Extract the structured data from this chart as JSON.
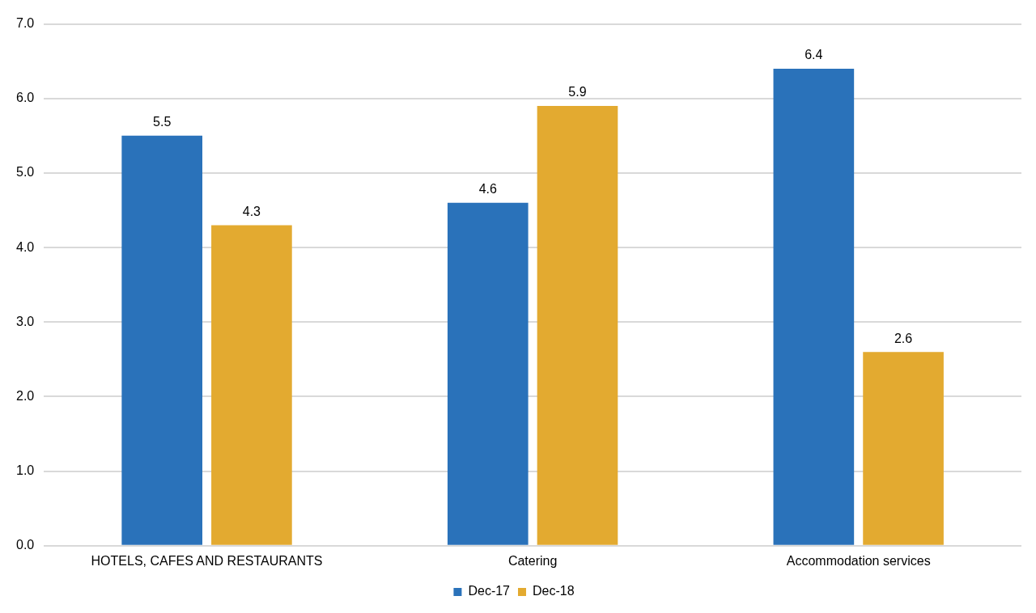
{
  "chart_data": {
    "type": "bar",
    "categories": [
      "HOTELS, CAFES AND RESTAURANTS",
      "Catering",
      "Accommodation services"
    ],
    "series": [
      {
        "name": "Dec-17",
        "color": "#2a72ba",
        "values": [
          5.5,
          4.6,
          6.4
        ]
      },
      {
        "name": "Dec-18",
        "color": "#e3aa30",
        "values": [
          4.3,
          5.9,
          2.6
        ]
      }
    ],
    "ylim": [
      0,
      7
    ],
    "yticks": [
      {
        "value": 0,
        "label": "0.0"
      },
      {
        "value": 1,
        "label": "1.0"
      },
      {
        "value": 2,
        "label": "2.0"
      },
      {
        "value": 3,
        "label": "3.0"
      },
      {
        "value": 4,
        "label": "4.0"
      },
      {
        "value": 5,
        "label": "5.0"
      },
      {
        "value": 6,
        "label": "6.0"
      },
      {
        "value": 7,
        "label": "7.0"
      }
    ],
    "grid": "y",
    "legend": "bottom",
    "data_labels": true
  }
}
